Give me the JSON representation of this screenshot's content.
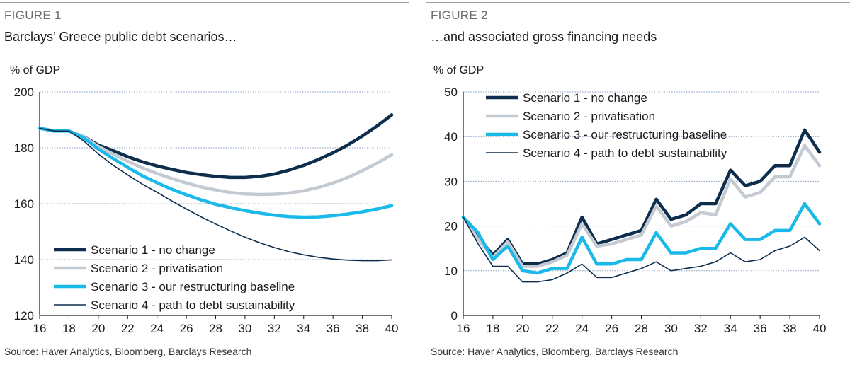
{
  "chart_data": [
    {
      "type": "line",
      "figure_label": "FIGURE 1",
      "title": "Barclays’ Greece public debt scenarios…",
      "ylabel": "% of GDP",
      "xlabel": "",
      "ylim": [
        120,
        200
      ],
      "xlim": [
        16,
        40
      ],
      "yticks": [
        120,
        140,
        160,
        180,
        200
      ],
      "xticks": [
        16,
        18,
        20,
        22,
        24,
        26,
        28,
        30,
        32,
        34,
        36,
        38,
        40
      ],
      "legend_position": "bottom-left",
      "grid": "horizontal-dotted",
      "source": "Source: Haver Analytics, Bloomberg, Barclays Research",
      "x": [
        16,
        17,
        18,
        19,
        20,
        21,
        22,
        23,
        24,
        25,
        26,
        27,
        28,
        29,
        30,
        31,
        32,
        33,
        34,
        35,
        36,
        37,
        38,
        39,
        40
      ],
      "series": [
        {
          "name": "Scenario 1 - no change",
          "color": "#0d2d4d",
          "width": 4.5,
          "values": [
            187,
            186,
            186,
            184,
            181,
            179,
            176.8,
            175,
            173.5,
            172.3,
            171.2,
            170.4,
            169.8,
            169.4,
            169.4,
            169.8,
            170.6,
            172,
            173.7,
            175.8,
            178.2,
            181,
            184.2,
            187.8,
            191.8
          ]
        },
        {
          "name": "Scenario 2 - privatisation",
          "color": "#c3cad1",
          "width": 4.5,
          "values": [
            187,
            186,
            186,
            184,
            180.5,
            177.8,
            175.2,
            172.8,
            170.8,
            169,
            167.4,
            166,
            164.9,
            164,
            163.5,
            163.3,
            163.4,
            163.8,
            164.6,
            165.8,
            167.4,
            169.4,
            171.8,
            174.5,
            177.5
          ]
        },
        {
          "name": "Scenario 3 - our restructuring baseline",
          "color": "#19b9ea",
          "width": 4.5,
          "values": [
            187,
            186,
            186,
            183.6,
            179.6,
            176.2,
            173,
            170,
            167.5,
            165.2,
            163.2,
            161.4,
            159.8,
            158.6,
            157.5,
            156.6,
            155.9,
            155.4,
            155.2,
            155.3,
            155.7,
            156.3,
            157.1,
            158.1,
            159.3
          ]
        },
        {
          "name": "Scenario 4 - path to debt sustainability",
          "color": "#0d2d4d",
          "width": 1.6,
          "values": [
            187,
            186,
            186,
            182.5,
            177.8,
            173.8,
            170.3,
            167,
            164.1,
            161,
            158.1,
            155.3,
            152.7,
            150.3,
            148,
            146,
            144.3,
            142.8,
            141.7,
            140.8,
            140.2,
            139.8,
            139.6,
            139.6,
            139.9
          ]
        }
      ]
    },
    {
      "type": "line",
      "figure_label": "FIGURE 2",
      "title": "…and associated gross financing needs",
      "ylabel": "% of GDP",
      "xlabel": "",
      "ylim": [
        0,
        50
      ],
      "xlim": [
        16,
        40
      ],
      "yticks": [
        0,
        10,
        20,
        30,
        40,
        50
      ],
      "xticks": [
        16,
        18,
        20,
        22,
        24,
        26,
        28,
        30,
        32,
        34,
        36,
        38,
        40
      ],
      "legend_position": "top-left",
      "grid": "horizontal-dotted",
      "source": "Source: Haver Analytics, Bloomberg, Barclays Research",
      "x": [
        16,
        17,
        18,
        19,
        20,
        21,
        22,
        23,
        24,
        25,
        26,
        27,
        28,
        29,
        30,
        31,
        32,
        33,
        34,
        35,
        36,
        37,
        38,
        39,
        40
      ],
      "series": [
        {
          "name": "Scenario 1 - no change",
          "color": "#0d2d4d",
          "width": 4.5,
          "values": [
            22,
            17.5,
            13.5,
            17,
            11.5,
            11.5,
            12.5,
            14,
            22,
            16,
            17,
            18,
            19,
            26,
            21.5,
            22.5,
            25,
            25,
            32.5,
            29,
            30,
            33.5,
            33.5,
            41.5,
            36.5
          ]
        },
        {
          "name": "Scenario 2 - privatisation",
          "color": "#c3cad1",
          "width": 4.5,
          "values": [
            22,
            17,
            13,
            16.5,
            11,
            11,
            12,
            13.5,
            20.5,
            15.5,
            16,
            17,
            18,
            24.5,
            20,
            21,
            23,
            22.5,
            30.5,
            26.5,
            27.5,
            31,
            31,
            38,
            33.5
          ]
        },
        {
          "name": "Scenario 3 - our restructuring baseline",
          "color": "#19b9ea",
          "width": 4.5,
          "values": [
            22,
            18.5,
            12.5,
            15.5,
            10,
            9.5,
            10.5,
            10.5,
            17.5,
            11.5,
            11.5,
            12.5,
            12.5,
            18.5,
            14,
            14,
            15,
            15,
            20.5,
            17,
            17,
            19,
            19,
            25,
            20.5
          ]
        },
        {
          "name": "Scenario 4 - path to debt sustainability",
          "color": "#0d2d4d",
          "width": 1.6,
          "values": [
            22,
            16,
            11,
            11,
            7.5,
            7.5,
            8,
            9.5,
            11.5,
            8.5,
            8.5,
            9.5,
            10.5,
            12,
            10,
            10.5,
            11,
            12,
            14,
            12,
            12.5,
            14.5,
            15.5,
            17.5,
            14.5
          ]
        }
      ]
    }
  ]
}
